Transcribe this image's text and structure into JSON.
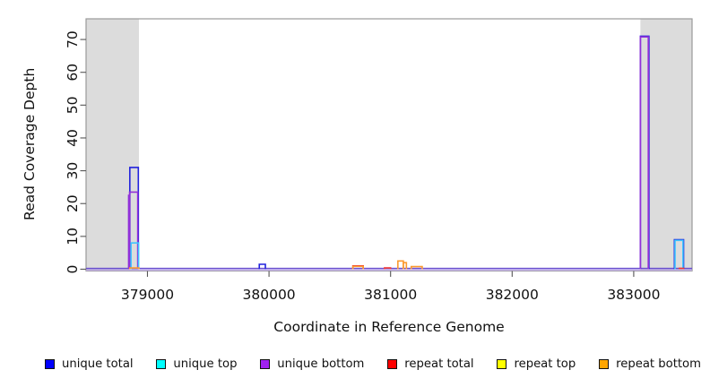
{
  "axes": {
    "x": {
      "label": "Coordinate in Reference Genome",
      "ticks": [
        379000,
        380000,
        381000,
        382000,
        383000
      ]
    },
    "y": {
      "label": "Read Coverage Depth",
      "ticks": [
        0,
        10,
        20,
        30,
        40,
        50,
        60,
        70
      ]
    }
  },
  "chart_data": {
    "type": "area",
    "subtype": "step-outline read coverage",
    "title": "",
    "xlabel": "Coordinate in Reference Genome",
    "ylabel": "Read Coverage Depth",
    "xlim": [
      378495,
      383480
    ],
    "ylim": [
      0,
      76.3
    ],
    "grid": false,
    "legend_position": "bottom",
    "shaded_regions": [
      {
        "x0": 378495,
        "x1": 378930,
        "color": "#DCDCDC"
      },
      {
        "x0": 383055,
        "x1": 383480,
        "color": "#DCDCDC"
      }
    ],
    "baseline": {
      "colors": [
        "#6A4FD0",
        "#C3ABEE"
      ]
    },
    "series": [
      {
        "name": "unique total",
        "legend_color": "#0000FF",
        "plot_color": "#2222DD",
        "segments": [
          [
            378855,
            378925,
            31
          ],
          [
            379920,
            379970,
            1.5
          ],
          [
            383055,
            383125,
            71
          ],
          [
            383335,
            383410,
            9
          ]
        ]
      },
      {
        "name": "unique top",
        "legend_color": "#00FFFF",
        "plot_color": "#3EC6FF",
        "segments": [
          [
            378865,
            378927,
            8
          ],
          [
            383340,
            383405,
            8.8
          ]
        ]
      },
      {
        "name": "unique bottom",
        "legend_color": "#A020F0",
        "plot_color": "#9130D9",
        "segments": [
          [
            378845,
            378853,
            22.5
          ],
          [
            378853,
            378920,
            23.5
          ],
          [
            383055,
            383120,
            70.8
          ]
        ]
      },
      {
        "name": "repeat total",
        "legend_color": "#FF0000",
        "plot_color": "#EE3333",
        "segments": [
          [
            380690,
            380775,
            1
          ],
          [
            380950,
            381000,
            0.4
          ],
          [
            383375,
            383410,
            0.25
          ]
        ]
      },
      {
        "name": "repeat top",
        "legend_color": "#FFFF00",
        "plot_color": "#E8D800",
        "segments": []
      },
      {
        "name": "repeat bottom",
        "legend_color": "#FFA500",
        "plot_color": "#FB9A30",
        "segments": [
          [
            378855,
            378930,
            0.4
          ],
          [
            380690,
            380775,
            0.85
          ],
          [
            381060,
            381105,
            2.5
          ],
          [
            381105,
            381130,
            2.0
          ],
          [
            381170,
            381260,
            0.8
          ]
        ]
      }
    ],
    "plot_border_color": "#9A9A9A",
    "tick_color": "#555555",
    "band_color": "#DCDCDC",
    "background": "#FFFFFF"
  },
  "legend": {
    "items": [
      {
        "label": "unique total",
        "color": "#0000FF"
      },
      {
        "label": "unique top",
        "color": "#00FFFF"
      },
      {
        "label": "unique bottom",
        "color": "#A020F0"
      },
      {
        "label": "repeat total",
        "color": "#FF0000"
      },
      {
        "label": "repeat top",
        "color": "#FFFF00"
      },
      {
        "label": "repeat bottom",
        "color": "#FFA500"
      }
    ]
  }
}
